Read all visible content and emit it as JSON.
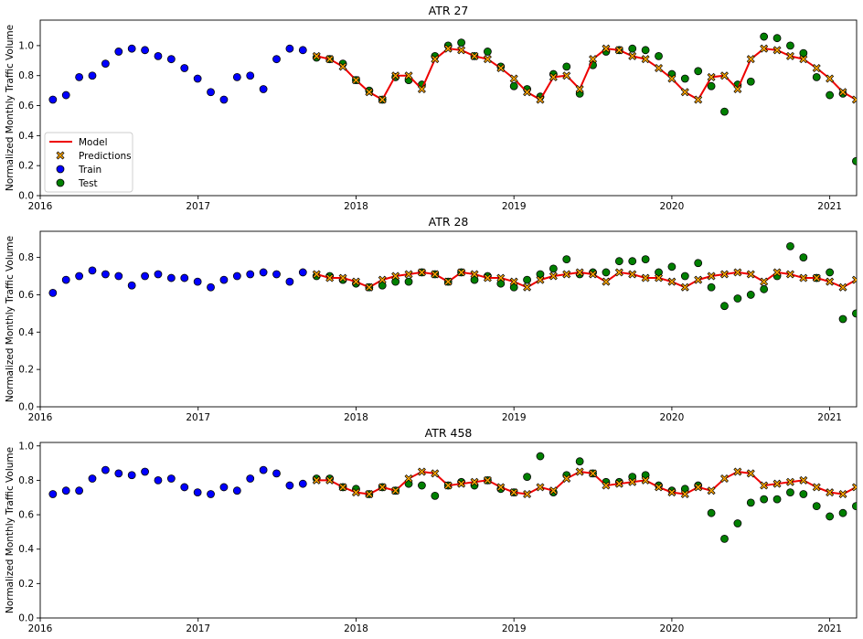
{
  "legend_labels": {
    "model": "Model",
    "pred": "Predictions",
    "train": "Train",
    "test": "Test"
  },
  "colors": {
    "model": "#ee0000",
    "pred": "#ffa500",
    "train": "#0000ff",
    "test": "#008000",
    "edge": "#000000"
  },
  "chart_data": [
    {
      "type": "scatter",
      "title": "ATR 27",
      "xlabel": "",
      "ylabel": "Normalized Monthly Traffic Volume",
      "xlim": [
        2016.0,
        2021.17
      ],
      "ylim": [
        0,
        1.17
      ],
      "xticks": [
        2016,
        2017,
        2018,
        2019,
        2020,
        2021
      ],
      "xtick_labels": [
        "2016",
        "2017",
        "2018",
        "2019",
        "2020",
        "2021"
      ],
      "yticks": [
        0,
        0.2,
        0.4,
        0.6,
        0.8,
        1.0
      ],
      "ytick_labels": [
        "0.0",
        "0.2",
        "0.4",
        "0.6",
        "0.8",
        "1.0"
      ],
      "legend": "lower-left",
      "grid": false,
      "train_start": 2016.08,
      "train": [
        0.64,
        0.67,
        0.79,
        0.8,
        0.88,
        0.96,
        0.98,
        0.97,
        0.93,
        0.91,
        0.85,
        0.78,
        0.69,
        0.64,
        0.79,
        0.8,
        0.71,
        0.91,
        0.98,
        0.97
      ],
      "test_start": 2017.75,
      "test": [
        0.92,
        0.91,
        0.88,
        0.77,
        0.7,
        0.64,
        0.79,
        0.77,
        0.74,
        0.93,
        1.0,
        1.02,
        0.93,
        0.96,
        0.86,
        0.73,
        0.71,
        0.66,
        0.81,
        0.86,
        0.68,
        0.87,
        0.96,
        0.97,
        0.98,
        0.97,
        0.93,
        0.81,
        0.78,
        0.83,
        0.73,
        0.56,
        0.74,
        0.76,
        1.06,
        1.05,
        1.0,
        0.95,
        0.79,
        0.67,
        0.68,
        0.23
      ],
      "model": [
        0.93,
        0.91,
        0.86,
        0.77,
        0.69,
        0.64,
        0.8,
        0.8,
        0.71,
        0.91,
        0.98,
        0.97,
        0.93,
        0.91,
        0.85,
        0.78,
        0.69,
        0.64,
        0.79,
        0.8,
        0.71,
        0.91,
        0.98,
        0.97,
        0.93,
        0.91,
        0.85,
        0.78,
        0.69,
        0.64,
        0.79,
        0.8,
        0.71,
        0.91,
        0.98,
        0.97,
        0.93,
        0.91,
        0.85,
        0.78,
        0.69,
        0.64
      ]
    },
    {
      "type": "scatter",
      "title": "ATR 28",
      "xlabel": "",
      "ylabel": "Normalized Monthly Traffic Volume",
      "xlim": [
        2016.0,
        2021.17
      ],
      "ylim": [
        0,
        0.94
      ],
      "xticks": [
        2016,
        2017,
        2018,
        2019,
        2020,
        2021
      ],
      "xtick_labels": [
        "2016",
        "2017",
        "2018",
        "2019",
        "2020",
        "2021"
      ],
      "yticks": [
        0,
        0.2,
        0.4,
        0.6,
        0.8
      ],
      "ytick_labels": [
        "0.0",
        "0.2",
        "0.4",
        "0.6",
        "0.8"
      ],
      "grid": false,
      "train_start": 2016.08,
      "train": [
        0.61,
        0.68,
        0.7,
        0.73,
        0.71,
        0.7,
        0.65,
        0.7,
        0.71,
        0.69,
        0.69,
        0.67,
        0.64,
        0.68,
        0.7,
        0.71,
        0.72,
        0.71,
        0.67,
        0.72
      ],
      "test_start": 2017.75,
      "test": [
        0.7,
        0.7,
        0.68,
        0.66,
        0.64,
        0.65,
        0.67,
        0.67,
        0.72,
        0.71,
        0.67,
        0.72,
        0.68,
        0.7,
        0.66,
        0.64,
        0.68,
        0.71,
        0.74,
        0.79,
        0.71,
        0.72,
        0.72,
        0.78,
        0.78,
        0.79,
        0.72,
        0.75,
        0.7,
        0.77,
        0.64,
        0.54,
        0.58,
        0.6,
        0.63,
        0.7,
        0.86,
        0.8,
        0.69,
        0.72,
        0.47,
        0.5
      ],
      "model": [
        0.71,
        0.69,
        0.69,
        0.67,
        0.64,
        0.68,
        0.7,
        0.71,
        0.72,
        0.71,
        0.67,
        0.72,
        0.71,
        0.69,
        0.69,
        0.67,
        0.64,
        0.68,
        0.7,
        0.71,
        0.72,
        0.71,
        0.67,
        0.72,
        0.71,
        0.69,
        0.69,
        0.67,
        0.64,
        0.68,
        0.7,
        0.71,
        0.72,
        0.71,
        0.67,
        0.72,
        0.71,
        0.69,
        0.69,
        0.67,
        0.64,
        0.68
      ]
    },
    {
      "type": "scatter",
      "title": "ATR 458",
      "xlabel": "",
      "ylabel": "Normalized Monthly Traffic Volume",
      "xlim": [
        2016.0,
        2021.17
      ],
      "ylim": [
        0,
        1.02
      ],
      "xticks": [
        2016,
        2017,
        2018,
        2019,
        2020,
        2021
      ],
      "xtick_labels": [
        "2016",
        "2017",
        "2018",
        "2019",
        "2020",
        "2021"
      ],
      "yticks": [
        0,
        0.2,
        0.4,
        0.6,
        0.8,
        1.0
      ],
      "ytick_labels": [
        "0.0",
        "0.2",
        "0.4",
        "0.6",
        "0.8",
        "1.0"
      ],
      "grid": false,
      "train_start": 2016.08,
      "train": [
        0.72,
        0.74,
        0.74,
        0.81,
        0.86,
        0.84,
        0.83,
        0.85,
        0.8,
        0.81,
        0.76,
        0.73,
        0.72,
        0.76,
        0.74,
        0.81,
        0.86,
        0.84,
        0.77,
        0.78
      ],
      "test_start": 2017.75,
      "test": [
        0.81,
        0.81,
        0.76,
        0.75,
        0.72,
        0.76,
        0.74,
        0.78,
        0.77,
        0.71,
        0.77,
        0.79,
        0.77,
        0.8,
        0.75,
        0.73,
        0.82,
        0.94,
        0.73,
        0.83,
        0.91,
        0.84,
        0.79,
        0.79,
        0.82,
        0.83,
        0.77,
        0.74,
        0.75,
        0.77,
        0.61,
        0.46,
        0.55,
        0.67,
        0.69,
        0.69,
        0.73,
        0.72,
        0.65,
        0.59,
        0.61,
        0.65
      ],
      "model": [
        0.8,
        0.8,
        0.76,
        0.73,
        0.72,
        0.76,
        0.74,
        0.81,
        0.85,
        0.84,
        0.77,
        0.78,
        0.79,
        0.8,
        0.76,
        0.73,
        0.72,
        0.76,
        0.74,
        0.81,
        0.85,
        0.84,
        0.77,
        0.78,
        0.79,
        0.8,
        0.76,
        0.73,
        0.72,
        0.76,
        0.74,
        0.81,
        0.85,
        0.84,
        0.77,
        0.78,
        0.79,
        0.8,
        0.76,
        0.73,
        0.72,
        0.76
      ]
    }
  ]
}
